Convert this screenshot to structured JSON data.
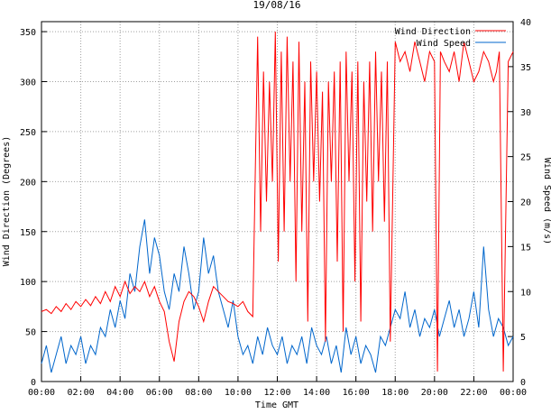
{
  "chart_data": {
    "type": "line",
    "title": "19/08/16",
    "xlabel": "Time GMT",
    "ylabel_left": "Wind Direction (Degrees)",
    "ylabel_right": "Wind Speed (m/s)",
    "x_ticks": [
      "00:00",
      "02:00",
      "04:00",
      "06:00",
      "08:00",
      "10:00",
      "12:00",
      "14:00",
      "16:00",
      "18:00",
      "20:00",
      "22:00",
      "00:00"
    ],
    "x_range_hours": [
      0,
      24
    ],
    "ylim_left": [
      0,
      360
    ],
    "yticks_left": [
      0,
      50,
      100,
      150,
      200,
      250,
      300,
      350
    ],
    "ylim_right": [
      0,
      40
    ],
    "yticks_right": [
      0,
      5,
      10,
      15,
      20,
      25,
      30,
      35,
      40
    ],
    "grid": true,
    "legend_position": "top-right",
    "series": [
      {
        "name": "Wind Direction",
        "axis": "left",
        "color": "#ff0000",
        "x": [
          0,
          0.25,
          0.5,
          0.75,
          1,
          1.25,
          1.5,
          1.75,
          2,
          2.25,
          2.5,
          2.75,
          3,
          3.25,
          3.5,
          3.75,
          4,
          4.25,
          4.5,
          4.75,
          5,
          5.25,
          5.5,
          5.75,
          6,
          6.25,
          6.5,
          6.75,
          7,
          7.25,
          7.5,
          7.75,
          8,
          8.25,
          8.5,
          8.75,
          9,
          9.25,
          9.5,
          9.75,
          10,
          10.25,
          10.5,
          10.75,
          11,
          11.15,
          11.3,
          11.45,
          11.6,
          11.75,
          11.9,
          12.05,
          12.2,
          12.35,
          12.5,
          12.65,
          12.8,
          12.95,
          13.1,
          13.25,
          13.4,
          13.55,
          13.7,
          13.85,
          14,
          14.15,
          14.3,
          14.45,
          14.6,
          14.75,
          14.9,
          15.05,
          15.2,
          15.35,
          15.5,
          15.65,
          15.8,
          15.95,
          16.1,
          16.25,
          16.4,
          16.55,
          16.7,
          16.85,
          17,
          17.15,
          17.3,
          17.45,
          17.6,
          17.75,
          18,
          18.25,
          18.5,
          18.75,
          19,
          19.25,
          19.5,
          19.75,
          20,
          20.15,
          20.3,
          20.5,
          20.75,
          21,
          21.25,
          21.5,
          21.75,
          22,
          22.25,
          22.5,
          22.75,
          23,
          23.15,
          23.3,
          23.5,
          23.75,
          24
        ],
        "values": [
          70,
          72,
          68,
          75,
          70,
          78,
          72,
          80,
          75,
          82,
          76,
          85,
          78,
          90,
          80,
          95,
          85,
          100,
          88,
          95,
          90,
          100,
          85,
          95,
          80,
          70,
          40,
          20,
          60,
          80,
          90,
          85,
          75,
          60,
          80,
          95,
          90,
          85,
          80,
          78,
          75,
          80,
          70,
          65,
          345,
          150,
          310,
          180,
          300,
          200,
          350,
          120,
          330,
          150,
          345,
          200,
          320,
          100,
          340,
          150,
          300,
          60,
          320,
          200,
          310,
          180,
          290,
          40,
          300,
          200,
          310,
          120,
          320,
          50,
          330,
          200,
          310,
          100,
          320,
          60,
          300,
          180,
          320,
          150,
          330,
          200,
          310,
          160,
          320,
          40,
          340,
          320,
          330,
          310,
          340,
          320,
          300,
          330,
          320,
          10,
          330,
          320,
          310,
          330,
          300,
          340,
          320,
          300,
          310,
          330,
          320,
          300,
          310,
          330,
          10,
          320,
          330
        ]
      },
      {
        "name": "Wind Speed",
        "axis": "right",
        "color": "#0066cc",
        "x": [
          0,
          0.25,
          0.5,
          0.75,
          1,
          1.25,
          1.5,
          1.75,
          2,
          2.25,
          2.5,
          2.75,
          3,
          3.25,
          3.5,
          3.75,
          4,
          4.25,
          4.5,
          4.75,
          5,
          5.25,
          5.5,
          5.75,
          6,
          6.25,
          6.5,
          6.75,
          7,
          7.25,
          7.5,
          7.75,
          8,
          8.25,
          8.5,
          8.75,
          9,
          9.25,
          9.5,
          9.75,
          10,
          10.25,
          10.5,
          10.75,
          11,
          11.25,
          11.5,
          11.75,
          12,
          12.25,
          12.5,
          12.75,
          13,
          13.25,
          13.5,
          13.75,
          14,
          14.25,
          14.5,
          14.75,
          15,
          15.25,
          15.5,
          15.75,
          16,
          16.25,
          16.5,
          16.75,
          17,
          17.25,
          17.5,
          17.75,
          18,
          18.25,
          18.5,
          18.75,
          19,
          19.25,
          19.5,
          19.75,
          20,
          20.25,
          20.5,
          20.75,
          21,
          21.25,
          21.5,
          21.75,
          22,
          22.25,
          22.5,
          22.75,
          23,
          23.25,
          23.5,
          23.75,
          24
        ],
        "values": [
          2,
          4,
          1,
          3,
          5,
          2,
          4,
          3,
          5,
          2,
          4,
          3,
          6,
          5,
          8,
          6,
          9,
          7,
          12,
          10,
          15,
          18,
          12,
          16,
          14,
          10,
          8,
          12,
          10,
          15,
          12,
          8,
          10,
          16,
          12,
          14,
          10,
          8,
          6,
          9,
          5,
          3,
          4,
          2,
          5,
          3,
          6,
          4,
          3,
          5,
          2,
          4,
          3,
          5,
          2,
          6,
          4,
          3,
          5,
          2,
          4,
          1,
          6,
          3,
          5,
          2,
          4,
          3,
          1,
          5,
          4,
          6,
          8,
          7,
          10,
          6,
          8,
          5,
          7,
          6,
          8,
          5,
          7,
          9,
          6,
          8,
          5,
          7,
          10,
          6,
          15,
          8,
          5,
          7,
          6,
          4,
          5
        ]
      }
    ]
  }
}
